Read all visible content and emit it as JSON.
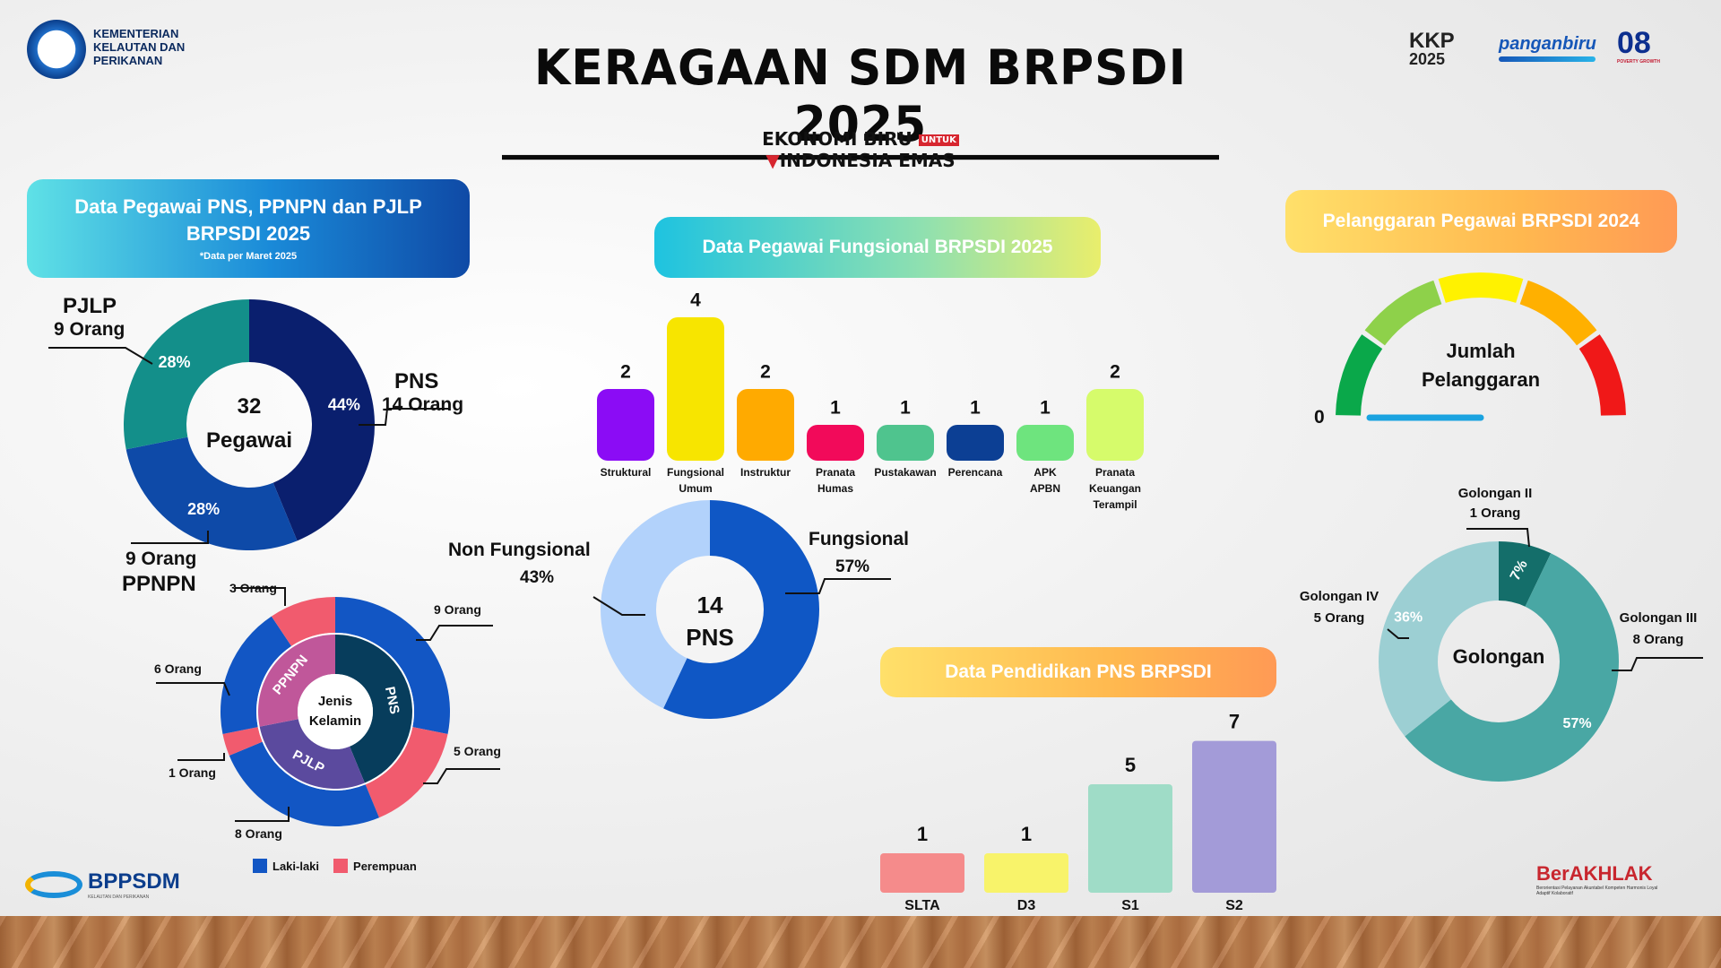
{
  "header": {
    "title": "KERAGAAN SDM BRPSDI 2025",
    "ministry_line1": "KEMENTERIAN",
    "ministry_line2": "KELAUTAN DAN",
    "ministry_line3": "PERIKANAN",
    "tagline_line1": "EKONOMI BIRU",
    "tagline_untuk": "UNTUK",
    "tagline_line2": "INDONESIA EMAS",
    "logo_kkp": "KKP",
    "logo_kkp_year": "2025",
    "logo_panganbiru": "panganbiru",
    "logo_08": "08",
    "logo_08_sub": "POVERTY  GROWTH",
    "logo_bppsdm": "BPPSDM",
    "logo_bppsdm_sub": "KELAUTAN DAN PERIKANAN",
    "logo_berakhlak": "BerAKHLAK",
    "logo_berakhlak_sub": "Berorientasi Pelayanan Akuntabel Kompeten Harmonis Loyal Adaptif Kolaboratif"
  },
  "panel_pegawai": {
    "title_line1": "Data Pegawai PNS, PPNPN dan PJLP",
    "title_line2": "BRPSDI 2025",
    "note": "*Data per Maret 2025",
    "center_value": "32",
    "center_label": "Pegawai",
    "labels": {
      "pjlp_name": "PJLP",
      "pjlp_count": "9 Orang",
      "pns_name": "PNS",
      "pns_count": "14 Orang",
      "ppnpn_count": "9 Orang",
      "ppnpn_name": "PPNPN"
    }
  },
  "panel_gender": {
    "center_line1": "Jenis",
    "center_line2": "Kelamin",
    "legend_male": "Laki-laki",
    "legend_female": "Perempuan",
    "labels": [
      "3 Orang",
      "9 Orang",
      "6 Orang",
      "5 Orang",
      "1 Orang",
      "8 Orang"
    ]
  },
  "panel_fungsional": {
    "title": "Data Pegawai Fungsional BRPSDI 2025",
    "donut_center_value": "14",
    "donut_center_label": "PNS",
    "nonfungsional_name": "Non Fungsional",
    "nonfungsional_pct": "43%",
    "fungsional_name": "Fungsional",
    "fungsional_pct": "57%"
  },
  "panel_pelanggaran": {
    "title": "Pelanggaran Pegawai BRPSDI 2024",
    "gauge_label_line1": "Jumlah",
    "gauge_label_line2": "Pelanggaran",
    "gauge_value": "0"
  },
  "panel_golongan": {
    "center_label": "Golongan",
    "gol2_name": "Golongan II",
    "gol2_count": "1 Orang",
    "gol3_name": "Golongan III",
    "gol3_count": "8 Orang",
    "gol4_name": "Golongan IV",
    "gol4_count": "5 Orang"
  },
  "panel_pendidikan": {
    "title": "Data Pendidikan PNS BRPSDI"
  },
  "colors": {
    "pns": "#0a1f6e",
    "ppnpn": "#0e4aa8",
    "pjlp": "#138f8a",
    "male": "#1256c4",
    "female": "#f15b6e",
    "inner_pns": "#073d5c",
    "inner_ppnpn": "#c0579a",
    "inner_pjlp": "#5b4a9e",
    "fungsional": "#0f57c5",
    "nonfungsional": "#b2d2fb",
    "gol2": "#146e6a",
    "gol3": "#49a7a4",
    "gol4": "#9ccfd3"
  },
  "chart_data": [
    {
      "type": "pie",
      "title": "Data Pegawai PNS, PPNPN dan PJLP BRPSDI 2025",
      "categories": [
        "PNS",
        "PPNPN",
        "PJLP"
      ],
      "values": [
        14,
        9,
        9
      ],
      "percent_labels": [
        "44%",
        "28%",
        "28%"
      ],
      "total": 32
    },
    {
      "type": "pie",
      "title": "Jenis Kelamin",
      "inner_categories": [
        "PNS",
        "PJLP",
        "PPNPN"
      ],
      "inner_values": [
        14,
        9,
        9
      ],
      "series": [
        {
          "name": "Laki-laki",
          "values": [
            9,
            8,
            6
          ]
        },
        {
          "name": "Perempuan",
          "values": [
            5,
            1,
            3
          ]
        }
      ],
      "categories": [
        "PNS",
        "PJLP",
        "PPNPN"
      ]
    },
    {
      "type": "bar",
      "title": "Data Pegawai Fungsional BRPSDI 2025",
      "categories": [
        "Struktural",
        "Fungsional Umum",
        "Instruktur",
        "Pranata Humas",
        "Pustakawan",
        "Perencana",
        "APK APBN",
        "Pranata Keuangan Terampil"
      ],
      "values": [
        2,
        4,
        2,
        1,
        1,
        1,
        1,
        2
      ],
      "colors": [
        "#8b0cf5",
        "#f7e500",
        "#ffaa00",
        "#f20a5a",
        "#4fc48e",
        "#0c3f94",
        "#6ee47e",
        "#d6fb6b"
      ]
    },
    {
      "type": "pie",
      "title": "PNS",
      "categories": [
        "Fungsional",
        "Non Fungsional"
      ],
      "values": [
        57,
        43
      ],
      "total": 14
    },
    {
      "type": "pie",
      "title": "Pelanggaran Pegawai BRPSDI 2024",
      "subtype": "gauge",
      "value": 0,
      "segment_colors": [
        "#0aa84a",
        "#8ed14a",
        "#fff200",
        "#ffb000",
        "#f01818"
      ]
    },
    {
      "type": "pie",
      "title": "Golongan",
      "categories": [
        "Golongan II",
        "Golongan III",
        "Golongan IV"
      ],
      "values": [
        1,
        8,
        5
      ],
      "percent_labels": [
        "7%",
        "57%",
        "36%"
      ]
    },
    {
      "type": "bar",
      "title": "Data Pendidikan PNS BRPSDI",
      "categories": [
        "SLTA",
        "D3",
        "S1",
        "S2"
      ],
      "values": [
        1,
        1,
        5,
        7
      ],
      "colors": [
        "#f58b8b",
        "#f8f36a",
        "#9fdcc7",
        "#a39bd8"
      ]
    }
  ]
}
